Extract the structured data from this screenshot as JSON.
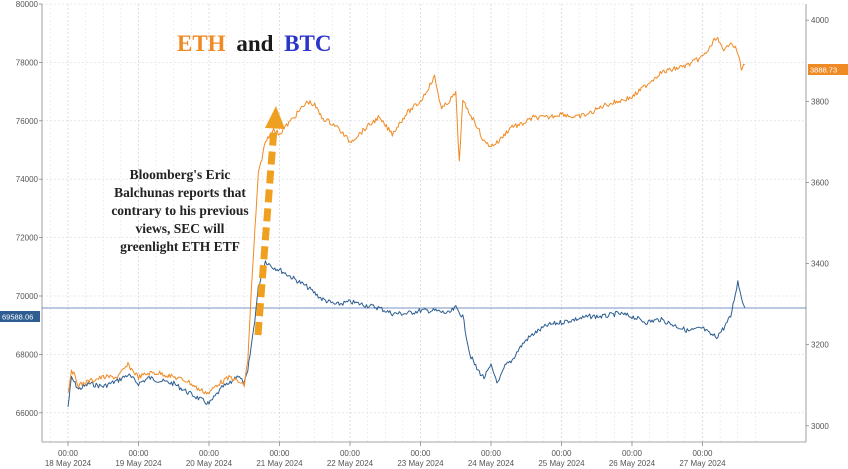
{
  "chart_data": {
    "type": "line",
    "title_parts": [
      "ETH",
      "and",
      "BTC"
    ],
    "annotation": [
      "Bloomberg's Eric",
      "Balchunas reports that",
      "contrary to his previous",
      "views, SEC will",
      "greenlight ETH ETF"
    ],
    "x_tick_time": "00:00",
    "x_tick_dates": [
      "18 May 2024",
      "19 May 2024",
      "20 May 2024",
      "21 May 2024",
      "22 May 2024",
      "23 May 2024",
      "24 May 2024",
      "25 May 2024",
      "26 May 2024",
      "27 May 2024"
    ],
    "left_axis": {
      "ticks": [
        "66000",
        "68000",
        "70000",
        "72000",
        "74000",
        "76000",
        "78000",
        "80000"
      ],
      "range": [
        65000,
        80000
      ]
    },
    "right_axis": {
      "ticks": [
        "3000",
        "3200",
        "3400",
        "3600",
        "3800",
        "4000"
      ],
      "range": [
        2960,
        4040
      ]
    },
    "last_values": {
      "btc": "69588.06",
      "eth": "3888.73"
    },
    "colors": {
      "eth": "#f08a24",
      "btc": "#2e5e91",
      "arrow": "#f0a020"
    },
    "series": [
      {
        "name": "BTC",
        "axis": "left",
        "x": [
          0,
          0.05,
          0.15,
          0.3,
          0.5,
          0.7,
          0.85,
          1.0,
          1.15,
          1.3,
          1.5,
          1.7,
          1.85,
          2.0,
          2.1,
          2.2,
          2.3,
          2.4,
          2.5,
          2.55,
          2.6,
          2.65,
          2.7,
          2.8,
          2.9,
          3.0,
          3.2,
          3.4,
          3.6,
          3.8,
          4.0,
          4.2,
          4.4,
          4.6,
          4.8,
          5.0,
          5.2,
          5.4,
          5.5,
          5.6,
          5.7,
          5.8,
          5.9,
          6.0,
          6.1,
          6.2,
          6.3,
          6.4,
          6.5,
          6.6,
          6.8,
          7.0,
          7.2,
          7.4,
          7.6,
          7.8,
          8.0,
          8.2,
          8.4,
          8.6,
          8.8,
          9.0,
          9.1,
          9.2,
          9.3,
          9.4,
          9.5,
          9.55,
          9.6
        ],
        "values": [
          66200,
          67200,
          66800,
          67000,
          66900,
          67100,
          67300,
          67000,
          67200,
          67100,
          67000,
          66700,
          66500,
          66300,
          66600,
          66900,
          67000,
          67300,
          67000,
          67400,
          68300,
          69200,
          70300,
          71200,
          71000,
          70900,
          70600,
          70300,
          69900,
          69700,
          69800,
          69700,
          69600,
          69400,
          69400,
          69500,
          69500,
          69400,
          69600,
          69300,
          68000,
          67500,
          67200,
          67600,
          67000,
          67600,
          67800,
          68200,
          68500,
          68700,
          69000,
          69100,
          69200,
          69300,
          69300,
          69400,
          69300,
          69100,
          69200,
          69000,
          68800,
          68900,
          68700,
          68600,
          68900,
          69300,
          70500,
          70000,
          69600
        ]
      },
      {
        "name": "ETH",
        "axis": "right",
        "x": [
          0,
          0.05,
          0.15,
          0.3,
          0.5,
          0.7,
          0.85,
          1.0,
          1.15,
          1.3,
          1.5,
          1.7,
          1.85,
          2.0,
          2.1,
          2.2,
          2.3,
          2.4,
          2.5,
          2.55,
          2.6,
          2.65,
          2.7,
          2.8,
          2.9,
          3.0,
          3.2,
          3.4,
          3.5,
          3.6,
          3.8,
          4.0,
          4.2,
          4.4,
          4.6,
          4.8,
          5.0,
          5.1,
          5.2,
          5.3,
          5.4,
          5.5,
          5.55,
          5.6,
          5.7,
          5.8,
          5.9,
          6.0,
          6.1,
          6.2,
          6.3,
          6.4,
          6.6,
          6.8,
          7.0,
          7.2,
          7.4,
          7.6,
          7.8,
          8.0,
          8.2,
          8.4,
          8.6,
          8.8,
          9.0,
          9.1,
          9.2,
          9.3,
          9.4,
          9.5,
          9.55,
          9.6
        ],
        "values": [
          3080,
          3140,
          3100,
          3110,
          3120,
          3120,
          3150,
          3120,
          3130,
          3130,
          3120,
          3110,
          3090,
          3080,
          3100,
          3110,
          3120,
          3110,
          3100,
          3160,
          3330,
          3480,
          3620,
          3700,
          3730,
          3720,
          3760,
          3800,
          3790,
          3760,
          3740,
          3700,
          3730,
          3760,
          3720,
          3770,
          3800,
          3830,
          3860,
          3780,
          3800,
          3820,
          3650,
          3800,
          3770,
          3740,
          3700,
          3690,
          3700,
          3720,
          3740,
          3740,
          3760,
          3760,
          3770,
          3760,
          3770,
          3790,
          3800,
          3810,
          3840,
          3870,
          3880,
          3890,
          3910,
          3930,
          3960,
          3920,
          3950,
          3920,
          3880,
          3890
        ]
      }
    ]
  }
}
